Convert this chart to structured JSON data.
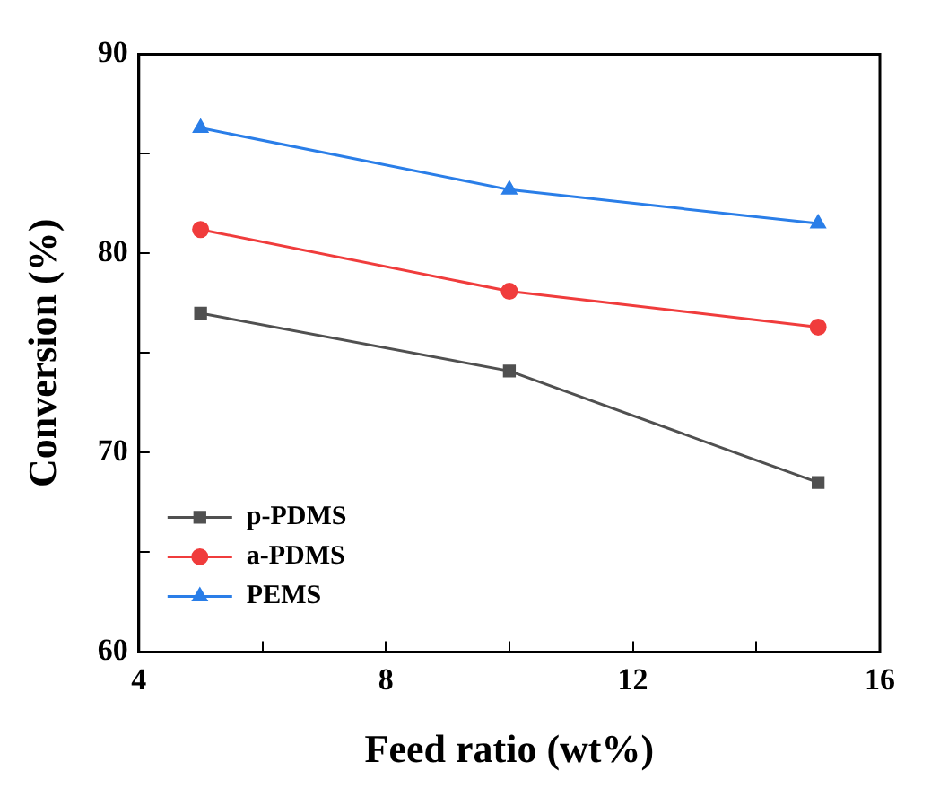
{
  "chart_data": {
    "type": "line",
    "xlabel": "Feed ratio (wt%)",
    "ylabel": "Conversion (%)",
    "x": [
      5,
      10,
      15
    ],
    "series": [
      {
        "name": "p-PDMS",
        "color": "#505050",
        "values": [
          77.0,
          74.1,
          68.5
        ],
        "marker": "square"
      },
      {
        "name": "a-PDMS",
        "color": "#f03c3c",
        "values": [
          81.2,
          78.1,
          76.3
        ],
        "marker": "circle"
      },
      {
        "name": "PEMS",
        "color": "#2a7ee8",
        "values": [
          86.3,
          83.2,
          81.5
        ],
        "marker": "triangle"
      }
    ],
    "xlim": [
      4,
      16
    ],
    "xticks": [
      4,
      {
        "value": 6,
        "label": null
      },
      8,
      {
        "value": 10,
        "label": null
      },
      12,
      {
        "value": 14,
        "label": null
      },
      16
    ],
    "ylim": [
      60,
      90
    ],
    "yticks": [
      60,
      {
        "value": 65,
        "label": null
      },
      70,
      {
        "value": 75,
        "label": null
      },
      80,
      {
        "value": 85,
        "label": null
      },
      90
    ],
    "grid": false,
    "legend": "bottom left",
    "line_style": "solid"
  }
}
